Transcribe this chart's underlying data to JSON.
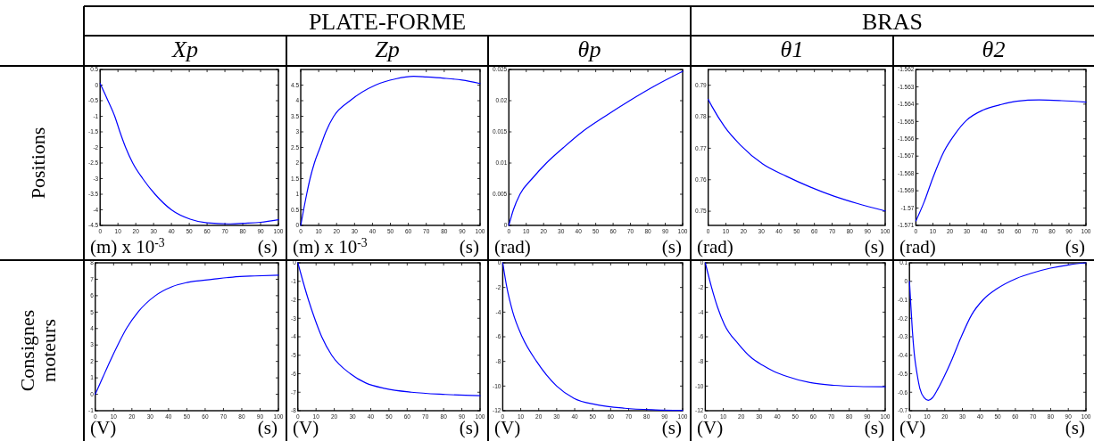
{
  "chart_data": [
    {
      "type": "line",
      "title": "Xp",
      "annotations": [
        "(m) x 10$^{-3}$"
      ],
      "xlabel": "(s)",
      "x": [
        0,
        4,
        8.2,
        11.1,
        14.3,
        18.3,
        23.9,
        30.8,
        40,
        50.5,
        60,
        72,
        80,
        90,
        100
      ],
      "values": [
        0.05,
        -0.45,
        -1,
        -1.5,
        -2,
        -2.5,
        -3,
        -3.5,
        -4,
        -4.3,
        -4.42,
        -4.45,
        -4.43,
        -4.4,
        -4.32
      ],
      "color": "#0000ff",
      "xlim": [
        0,
        100
      ],
      "xticks": [
        0,
        10,
        20,
        30,
        40,
        50,
        60,
        70,
        80,
        90,
        100
      ],
      "ylim": [
        -4.5,
        0.5
      ],
      "yticks": [
        -4.5,
        -4,
        -3.5,
        -3,
        -2.5,
        -2,
        -1.5,
        -1,
        -0.5,
        0,
        0.5
      ]
    },
    {
      "type": "line",
      "title": "Zp",
      "annotations": [
        "(m) x 10$^{-3}$"
      ],
      "xlabel": "(s)",
      "x": [
        0,
        1.6,
        3.3,
        5.2,
        7.6,
        10.8,
        14,
        18.4,
        27.5,
        41.7,
        53,
        63,
        70,
        80,
        90,
        100
      ],
      "values": [
        0,
        0.5,
        1,
        1.5,
        2,
        2.5,
        3,
        3.5,
        4,
        4.5,
        4.7,
        4.78,
        4.76,
        4.72,
        4.66,
        4.55
      ],
      "color": "#0000ff",
      "xlim": [
        0,
        100
      ],
      "xticks": [
        0,
        10,
        20,
        30,
        40,
        50,
        60,
        70,
        80,
        90,
        100
      ],
      "ylim": [
        0,
        5
      ],
      "yticks": [
        0,
        0.5,
        1,
        1.5,
        2,
        2.5,
        3,
        3.5,
        4,
        4.5
      ]
    },
    {
      "type": "line",
      "title": "θp",
      "annotations": [
        "(rad)"
      ],
      "xlabel": "(s)",
      "x": [
        0,
        2.6,
        6.4,
        13.4,
        21.6,
        31.5,
        42.2,
        55.4,
        69.5,
        84.8,
        100
      ],
      "values": [
        0,
        0.0025,
        0.005,
        0.0075,
        0.01,
        0.0125,
        0.015,
        0.0175,
        0.02,
        0.0225,
        0.0247
      ],
      "color": "#0000ff",
      "xlim": [
        0,
        100
      ],
      "xticks": [
        0,
        10,
        20,
        30,
        40,
        50,
        60,
        70,
        80,
        90,
        100
      ],
      "ylim": [
        0,
        0.025
      ],
      "yticks": [
        0,
        0.005,
        0.01,
        0.015,
        0.02,
        0.025
      ]
    },
    {
      "type": "line",
      "title": "θ1",
      "annotations": [
        "(rad)"
      ],
      "xlabel": "(s)",
      "x": [
        0,
        2.1,
        9.4,
        18.2,
        30.8,
        44.2,
        57.6,
        71,
        84,
        100
      ],
      "values": [
        0.7855,
        0.7833,
        0.7767,
        0.771,
        0.765,
        0.7611,
        0.7577,
        0.7548,
        0.7525,
        0.7501
      ],
      "color": "#0000ff",
      "xlim": [
        0,
        100
      ],
      "xticks": [
        0,
        10,
        20,
        30,
        40,
        50,
        60,
        70,
        80,
        90,
        100
      ],
      "ylim": [
        0.7455,
        0.795
      ],
      "yticks": [
        0.75,
        0.76,
        0.77,
        0.78,
        0.79
      ]
    },
    {
      "type": "line",
      "title": "θ2",
      "annotations": [
        "(rad)"
      ],
      "xlabel": "(s)",
      "x": [
        0,
        4.9,
        9.9,
        16.5,
        23.1,
        29.7,
        39.5,
        49.4,
        59.3,
        72.5,
        85.7,
        100
      ],
      "values": [
        -1.57074,
        -1.56963,
        -1.56827,
        -1.56673,
        -1.56571,
        -1.56494,
        -1.56434,
        -1.56404,
        -1.56383,
        -1.56376,
        -1.5638,
        -1.56388
      ],
      "color": "#0000ff",
      "xlim": [
        0,
        100
      ],
      "xticks": [
        0,
        10,
        20,
        30,
        40,
        50,
        60,
        70,
        80,
        90,
        100
      ],
      "ylim": [
        -1.571,
        -1.562
      ],
      "yticks": [
        -1.571,
        -1.57,
        -1.569,
        -1.568,
        -1.567,
        -1.566,
        -1.565,
        -1.564,
        -1.563,
        -1.562
      ]
    },
    {
      "type": "line",
      "annotations": [
        "(V)"
      ],
      "xlabel": "(s)",
      "x": [
        0,
        4,
        8,
        12.3,
        17,
        23.3,
        32.8,
        42,
        50,
        64.3,
        75,
        87,
        100
      ],
      "values": [
        0,
        1,
        2,
        3,
        4,
        5,
        6,
        6.55,
        6.8,
        7,
        7.13,
        7.2,
        7.25
      ],
      "color": "#0000ff",
      "xlim": [
        0,
        100
      ],
      "xticks": [
        0,
        10,
        20,
        30,
        40,
        50,
        60,
        70,
        80,
        90,
        100
      ],
      "ylim": [
        -1,
        8
      ],
      "yticks": [
        -1,
        0,
        1,
        2,
        3,
        4,
        5,
        6,
        7,
        8
      ]
    },
    {
      "type": "line",
      "annotations": [
        "(V)"
      ],
      "xlabel": "(s)",
      "x": [
        0,
        2.8,
        5.8,
        9.2,
        13.1,
        18.6,
        28.8,
        37.3,
        48,
        62.3,
        81,
        100
      ],
      "values": [
        0,
        -1,
        -2,
        -3,
        -4,
        -5,
        -6,
        -6.5,
        -6.8,
        -7,
        -7.12,
        -7.19
      ],
      "color": "#0000ff",
      "xlim": [
        0,
        100
      ],
      "xticks": [
        0,
        10,
        20,
        30,
        40,
        50,
        60,
        70,
        80,
        90,
        100
      ],
      "ylim": [
        -8,
        0
      ],
      "yticks": [
        -8,
        -7,
        -6,
        -5,
        -4,
        -3,
        -2,
        -1,
        0
      ]
    },
    {
      "type": "line",
      "annotations": [
        "(V)"
      ],
      "xlabel": "(s)",
      "x": [
        0,
        2.3,
        5.6,
        10.8,
        18.8,
        30,
        39.7,
        51.8,
        67.8,
        85,
        100
      ],
      "values": [
        0,
        -2,
        -4,
        -6,
        -8,
        -10,
        -11,
        -11.5,
        -11.8,
        -11.93,
        -11.98
      ],
      "color": "#0000ff",
      "xlim": [
        0,
        100
      ],
      "xticks": [
        0,
        10,
        20,
        30,
        40,
        50,
        60,
        70,
        80,
        90,
        100
      ],
      "ylim": [
        -12,
        0
      ],
      "yticks": [
        -12,
        -10,
        -8,
        -6,
        -4,
        -2,
        0
      ]
    },
    {
      "type": "line",
      "annotations": [
        "(V)"
      ],
      "xlabel": "(s)",
      "x": [
        0,
        3.5,
        6.8,
        10.6,
        18.5,
        25.6,
        31.7,
        38,
        45,
        58.2,
        71.4,
        85,
        100
      ],
      "values": [
        0,
        -2,
        -3.6,
        -5,
        -6.6,
        -7.7,
        -8.3,
        -8.8,
        -9.2,
        -9.72,
        -9.94,
        -10.03,
        -10.06
      ],
      "color": "#0000ff",
      "xlim": [
        0,
        100
      ],
      "xticks": [
        0,
        10,
        20,
        30,
        40,
        50,
        60,
        70,
        80,
        90,
        100
      ],
      "ylim": [
        -12,
        0
      ],
      "yticks": [
        -12,
        -10,
        -8,
        -6,
        -4,
        -2,
        0
      ]
    },
    {
      "type": "line",
      "annotations": [
        "(V)"
      ],
      "xlabel": "(s)",
      "x": [
        0,
        0.6,
        1.6,
        2.7,
        4.3,
        5.9,
        8.3,
        10.7,
        13,
        16.2,
        19.4,
        24.2,
        28.9,
        35.3,
        41.7,
        49.6,
        60.7,
        70.3,
        79.8,
        90.9,
        100
      ],
      "values": [
        0,
        -0.1,
        -0.26,
        -0.39,
        -0.5,
        -0.58,
        -0.63,
        -0.644,
        -0.63,
        -0.58,
        -0.52,
        -0.42,
        -0.31,
        -0.18,
        -0.1,
        -0.04,
        0.016,
        0.047,
        0.071,
        0.09,
        0.1
      ],
      "color": "#0000ff",
      "xlim": [
        0,
        100
      ],
      "xticks": [
        0,
        10,
        20,
        30,
        40,
        50,
        60,
        70,
        80,
        90,
        100
      ],
      "ylim": [
        -0.7,
        0.1
      ],
      "yticks": [
        -0.7,
        -0.6,
        -0.5,
        -0.4,
        -0.3,
        -0.2,
        -0.1,
        0,
        0.1
      ]
    },
    {
      "type": "other",
      "annotations": [
        "PLATE-FORME",
        "BRAS",
        "Positions",
        "Consignes moteurs"
      ]
    }
  ]
}
